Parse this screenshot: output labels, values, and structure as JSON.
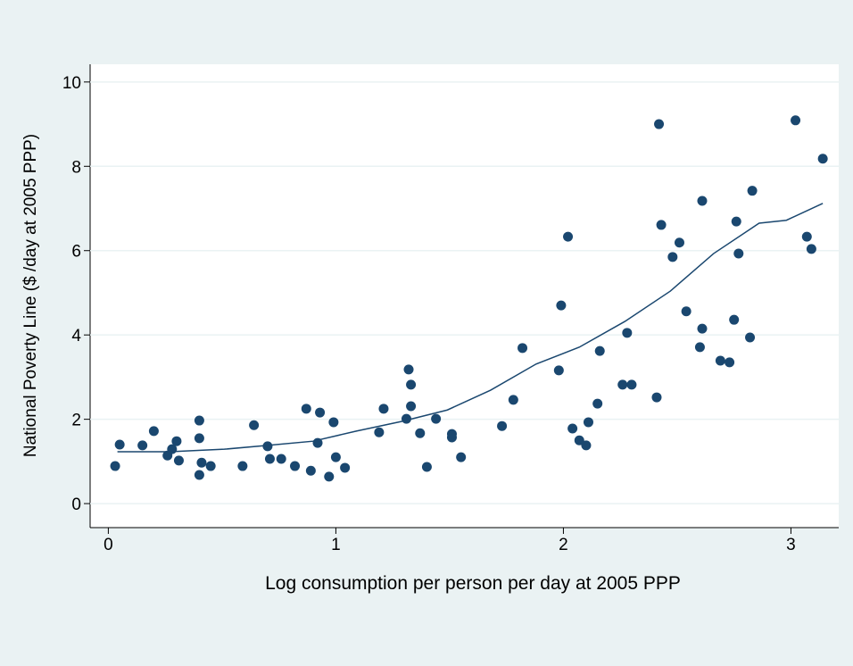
{
  "chart_data": {
    "type": "scatter",
    "xlabel": "Log consumption per person per day at 2005 PPP",
    "ylabel": "National Poverty Line ($ /day at 2005 PPP)",
    "xlim": [
      -0.08,
      3.21
    ],
    "ylim": [
      -0.57,
      10.42
    ],
    "xticks": [
      0,
      1,
      2,
      3
    ],
    "yticks": [
      0,
      2,
      4,
      6,
      8,
      10
    ],
    "grid": true,
    "series": [
      {
        "type": "scatter",
        "color": "#1a476f",
        "x": [
          0.03,
          0.05,
          0.15,
          0.2,
          0.26,
          0.28,
          0.3,
          0.31,
          0.4,
          0.4,
          0.41,
          0.4,
          0.45,
          0.59,
          0.64,
          0.7,
          0.71,
          0.76,
          0.82,
          0.87,
          0.89,
          0.92,
          0.93,
          0.97,
          0.99,
          1.0,
          1.04,
          1.19,
          1.21,
          1.31,
          1.32,
          1.33,
          1.33,
          1.37,
          1.4,
          1.44,
          1.51,
          1.51,
          1.55,
          1.73,
          1.78,
          1.82,
          1.98,
          1.99,
          2.02,
          2.04,
          2.07,
          2.1,
          2.11,
          2.15,
          2.16,
          2.26,
          2.28,
          2.3,
          2.41,
          2.42,
          2.43,
          2.48,
          2.51,
          2.54,
          2.6,
          2.61,
          2.61,
          2.69,
          2.73,
          2.75,
          2.76,
          2.77,
          2.82,
          2.83,
          3.02,
          3.07,
          3.09,
          3.14
        ],
        "values": [
          0.89,
          1.4,
          1.38,
          1.72,
          1.14,
          1.29,
          1.48,
          1.02,
          1.97,
          1.55,
          0.97,
          0.68,
          0.89,
          0.89,
          1.86,
          1.36,
          1.06,
          1.06,
          0.89,
          2.25,
          0.78,
          1.44,
          2.16,
          0.64,
          1.93,
          1.1,
          0.85,
          1.69,
          2.25,
          2.01,
          3.18,
          2.82,
          2.31,
          1.67,
          0.87,
          2.01,
          1.57,
          1.65,
          1.1,
          1.84,
          2.46,
          3.69,
          3.16,
          4.7,
          6.33,
          1.78,
          1.5,
          1.38,
          1.93,
          2.37,
          3.62,
          2.82,
          4.05,
          2.82,
          2.52,
          9.0,
          6.61,
          5.85,
          6.19,
          4.56,
          3.71,
          7.18,
          4.15,
          3.39,
          3.35,
          4.36,
          6.69,
          5.93,
          3.94,
          7.42,
          9.09,
          6.33,
          6.04,
          8.18
        ]
      },
      {
        "type": "line",
        "color": "#1a476f",
        "x": [
          0.04,
          0.27,
          0.51,
          0.7,
          0.9,
          1.09,
          1.29,
          1.49,
          1.68,
          1.88,
          2.07,
          2.27,
          2.47,
          2.66,
          2.86,
          2.98,
          3.14
        ],
        "values": [
          1.23,
          1.23,
          1.29,
          1.38,
          1.48,
          1.72,
          1.95,
          2.22,
          2.69,
          3.31,
          3.71,
          4.32,
          5.04,
          5.93,
          6.65,
          6.72,
          7.12
        ]
      }
    ]
  }
}
